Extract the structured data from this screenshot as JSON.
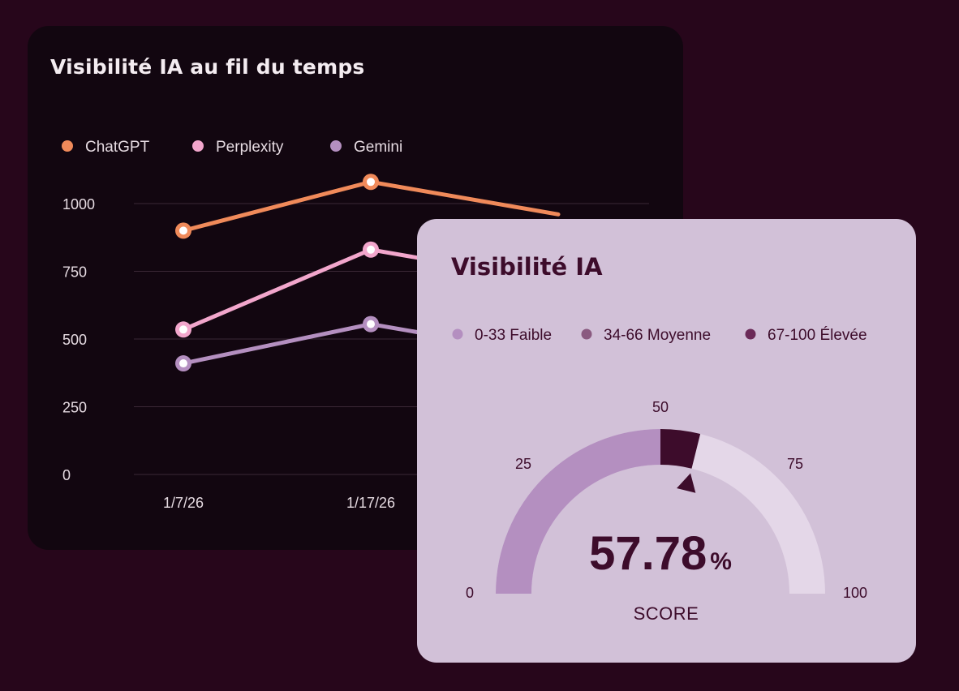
{
  "line_card": {
    "title": "Visibilité IA au fil du temps"
  },
  "gauge_card": {
    "title": "Visibilité IA",
    "legend": [
      {
        "label": "0-33 Faible",
        "color": "#b48fc0"
      },
      {
        "label": "34-66 Moyenne",
        "color": "#8a5a80"
      },
      {
        "label": "67-100 Élevée",
        "color": "#6b2a58"
      }
    ],
    "score_value": "57.78",
    "score_unit": "%",
    "score_label": "SCORE",
    "tick_labels": [
      "0",
      "25",
      "50",
      "75",
      "100"
    ]
  },
  "chart_data": [
    {
      "type": "line",
      "title": "Visibilité IA au fil du temps",
      "x": [
        "1/7/26",
        "1/17/26"
      ],
      "series": [
        {
          "name": "ChatGPT",
          "color": "#f08a5a",
          "values": [
            900,
            1080
          ]
        },
        {
          "name": "Perplexity",
          "color": "#f2a6cc",
          "values": [
            535,
            830
          ]
        },
        {
          "name": "Gemini",
          "color": "#b48fc0",
          "values": [
            410,
            555
          ]
        }
      ],
      "yticks": [
        0,
        250,
        500,
        750,
        1000
      ],
      "ylim": [
        0,
        1150
      ],
      "grid": true,
      "legend": "top-left"
    },
    {
      "type": "gauge",
      "title": "Visibilité IA",
      "value": 57.78,
      "min": 0,
      "max": 100,
      "ticks": [
        0,
        25,
        50,
        75,
        100
      ],
      "fill_color": "#b48fc0",
      "highlight_color": "#3d0c2b",
      "track_color": "#e4d7e8"
    }
  ]
}
